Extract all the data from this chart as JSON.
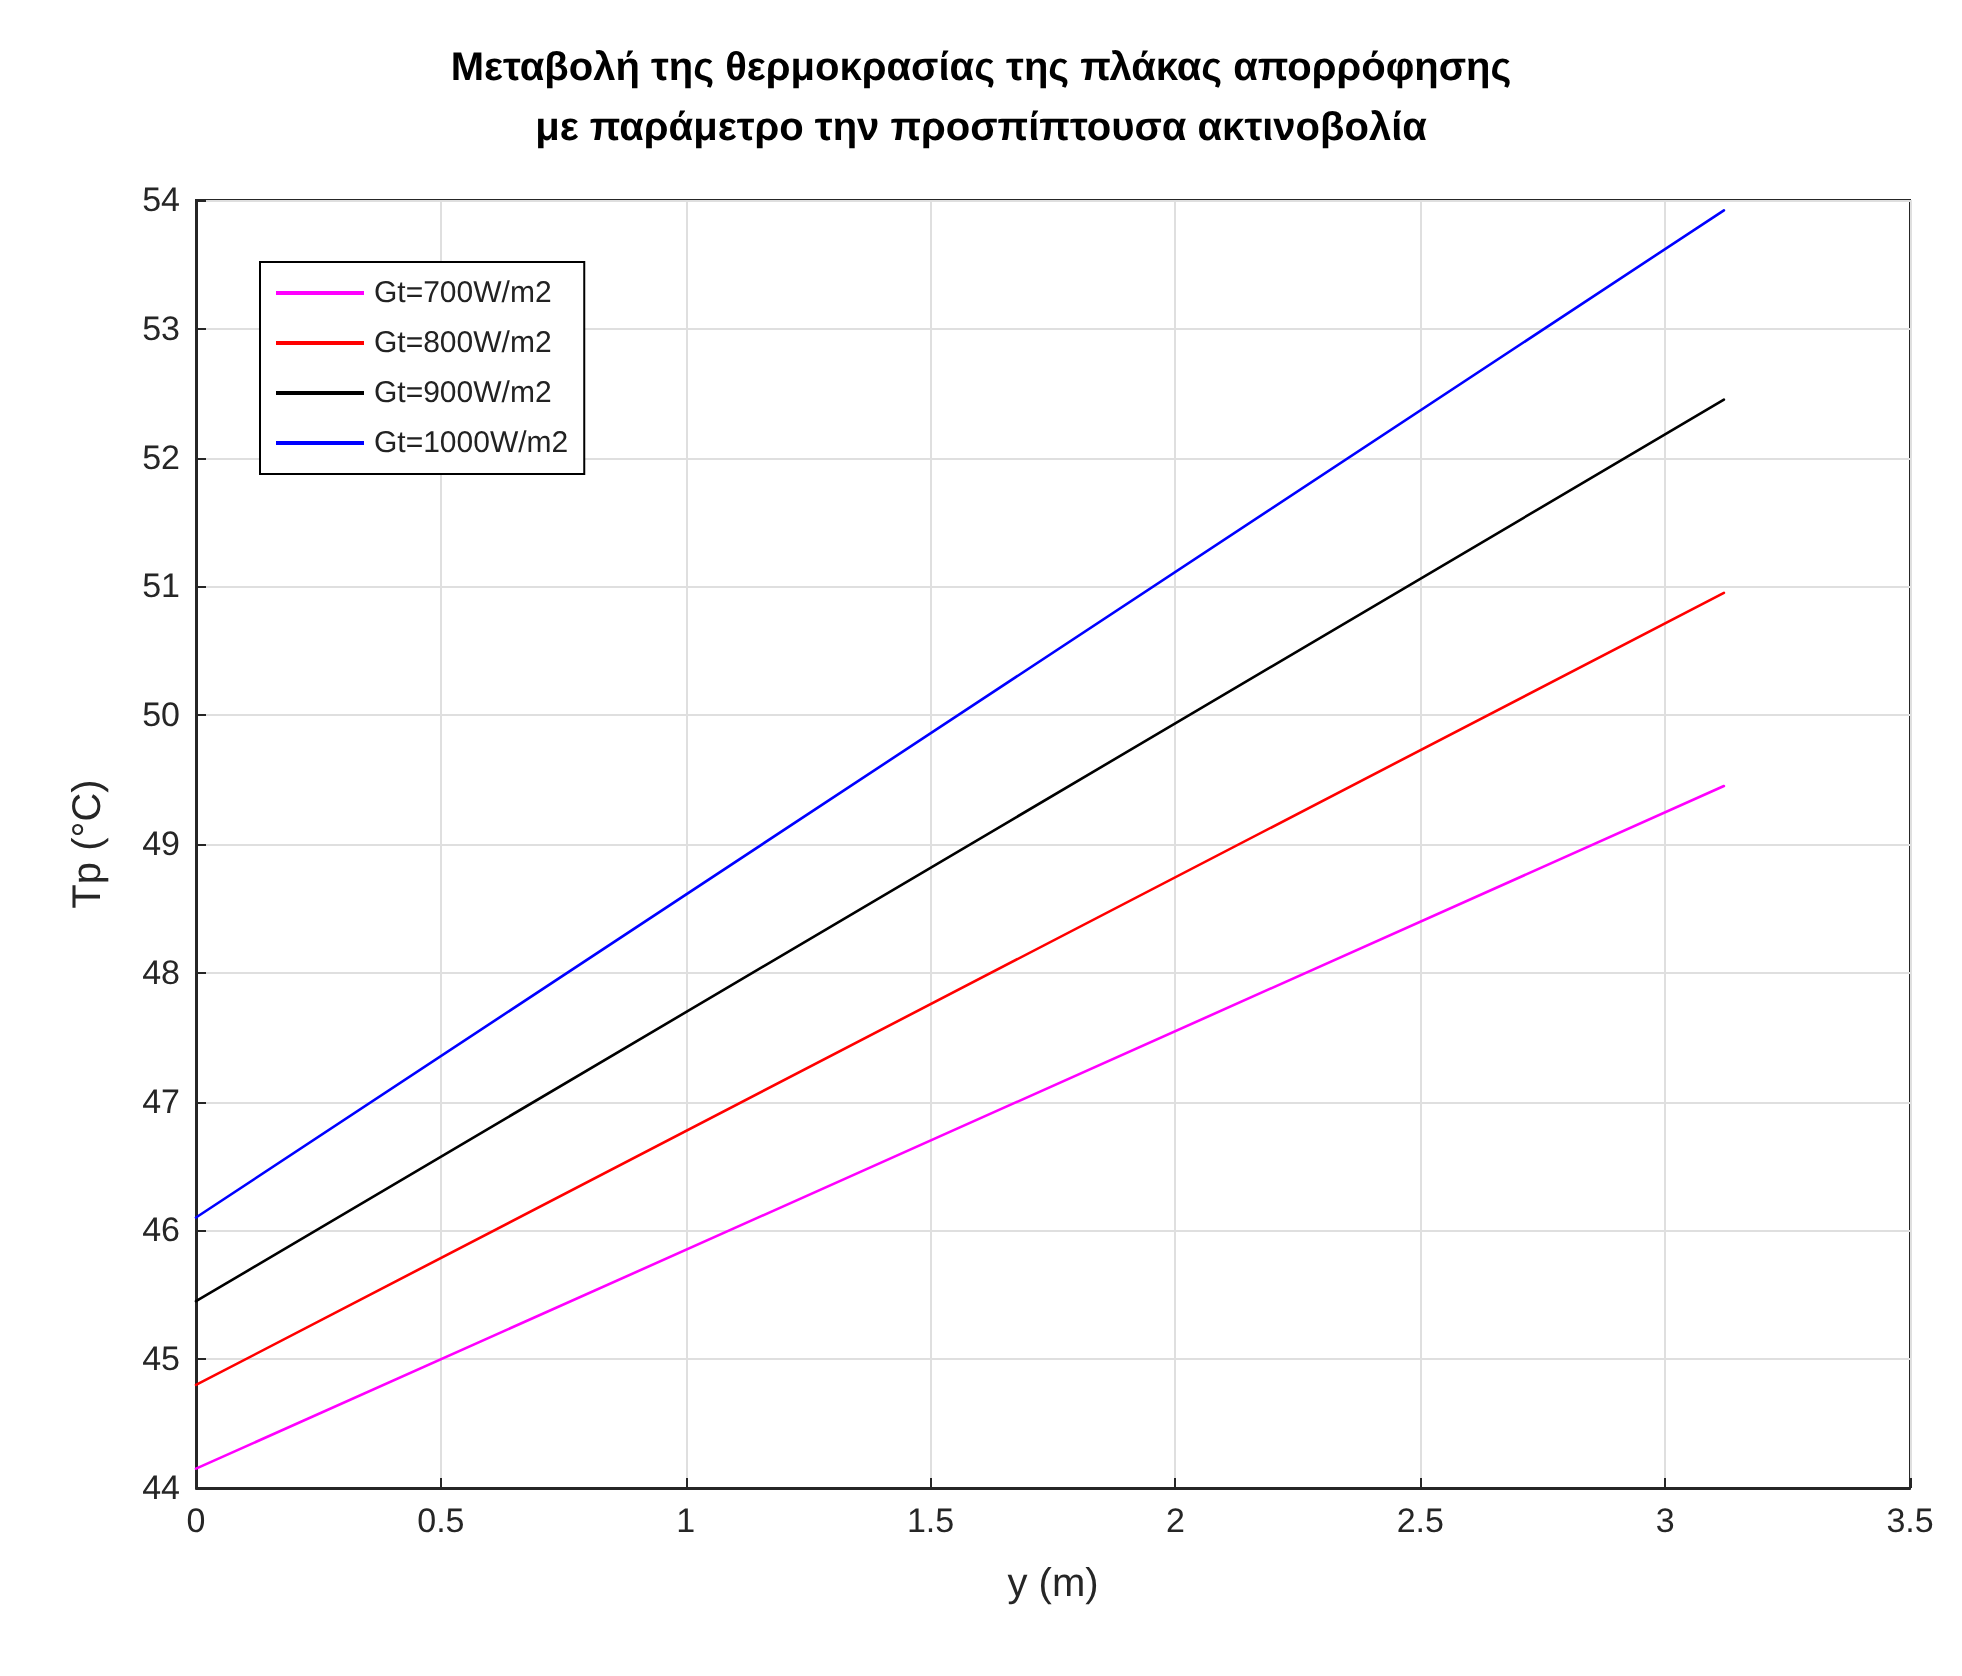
{
  "chart_data": {
    "type": "line",
    "title": "Μεταβολή της θερμοκρασίας της πλάκας απορρόφησης\nμε παράμετρο την προσπίπτουσα ακτινοβολία",
    "xlabel": "y (m)",
    "ylabel": "Tp (°C)",
    "x": [
      0,
      3.12
    ],
    "series": [
      {
        "name": "Gt=700W/m2",
        "color": "#ff00ff",
        "values": [
          44.15,
          49.45
        ]
      },
      {
        "name": "Gt=800W/m2",
        "color": "#ff0000",
        "values": [
          44.8,
          50.95
        ]
      },
      {
        "name": "Gt=900W/m2",
        "color": "#000000",
        "values": [
          45.45,
          52.45
        ]
      },
      {
        "name": "Gt=1000W/m2",
        "color": "#0000ff",
        "values": [
          46.1,
          53.92
        ]
      }
    ],
    "xlim": [
      0,
      3.5
    ],
    "xticks": [
      0,
      0.5,
      1,
      1.5,
      2,
      2.5,
      3,
      3.5
    ],
    "ylim": [
      44,
      54
    ],
    "yticks": [
      44,
      45,
      46,
      47,
      48,
      49,
      50,
      51,
      52,
      53,
      54
    ],
    "grid": true,
    "legend": "top left",
    "marker": "none",
    "line_style": "solid"
  }
}
